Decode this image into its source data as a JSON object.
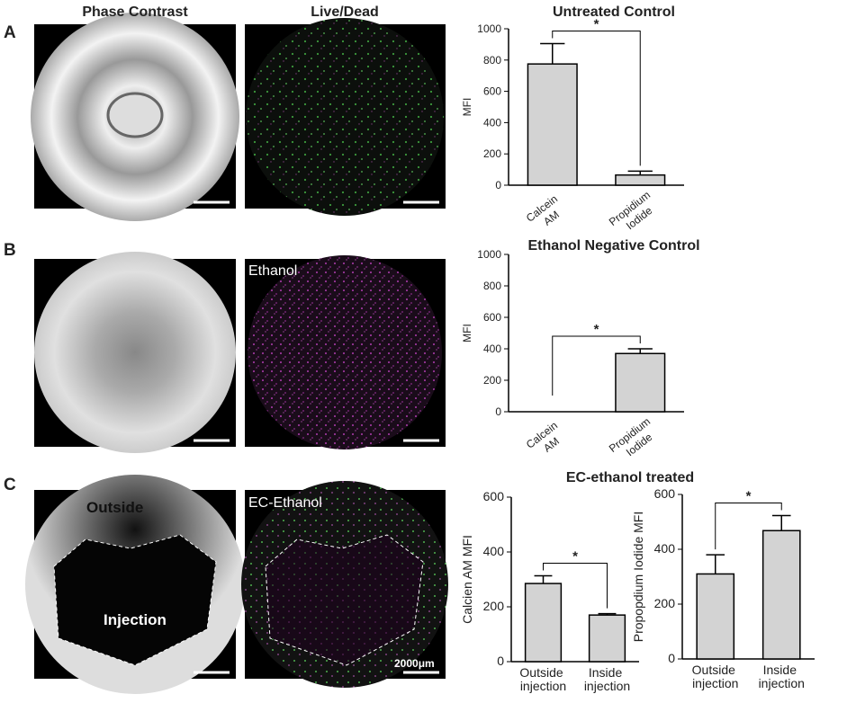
{
  "figure": {
    "column_titles": [
      "Phase Contrast",
      "Live/Dead"
    ],
    "panel_labels": [
      "A",
      "B",
      "C"
    ],
    "image_labels": [
      "Ethanol",
      "EC-Ethanol",
      "Outside",
      "Injection"
    ],
    "scale_bar": "2000μm"
  },
  "chart_data": [
    {
      "type": "bar",
      "title": "Untreated Control",
      "ylabel": "MFI",
      "categories": [
        "Calcein AM",
        "Propidium Iodide"
      ],
      "values": [
        775,
        65
      ],
      "errors": [
        130,
        25
      ],
      "ylim": [
        0,
        1000
      ],
      "yticks": [
        0,
        200,
        400,
        600,
        800,
        1000
      ],
      "color": "#d3d3d3",
      "significance": "*"
    },
    {
      "type": "bar",
      "title": "Ethanol Negative Control",
      "ylabel": "MFI",
      "categories": [
        "Calcein AM",
        "Propidium Iodide"
      ],
      "values": [
        0,
        370
      ],
      "errors": [
        0,
        30
      ],
      "ylim": [
        0,
        1000
      ],
      "yticks": [
        0,
        200,
        400,
        600,
        800,
        1000
      ],
      "color": "#d3d3d3",
      "significance": "*"
    },
    {
      "type": "bar",
      "title": "EC-ethanol treated",
      "ylabel": "Calcien AM MFI",
      "categories": [
        "Outside injection",
        "Inside injection"
      ],
      "values": [
        285,
        170
      ],
      "errors": [
        28,
        5
      ],
      "ylim": [
        0,
        600
      ],
      "yticks": [
        0,
        200,
        400,
        600
      ],
      "color": "#d3d3d3",
      "significance": "*"
    },
    {
      "type": "bar",
      "ylabel": "Propopdium Iodide MFI",
      "categories": [
        "Outside injection",
        "Inside injection"
      ],
      "values": [
        310,
        468
      ],
      "errors": [
        70,
        55
      ],
      "ylim": [
        0,
        600
      ],
      "yticks": [
        0,
        200,
        400,
        600
      ],
      "color": "#d3d3d3",
      "significance": "*"
    }
  ]
}
